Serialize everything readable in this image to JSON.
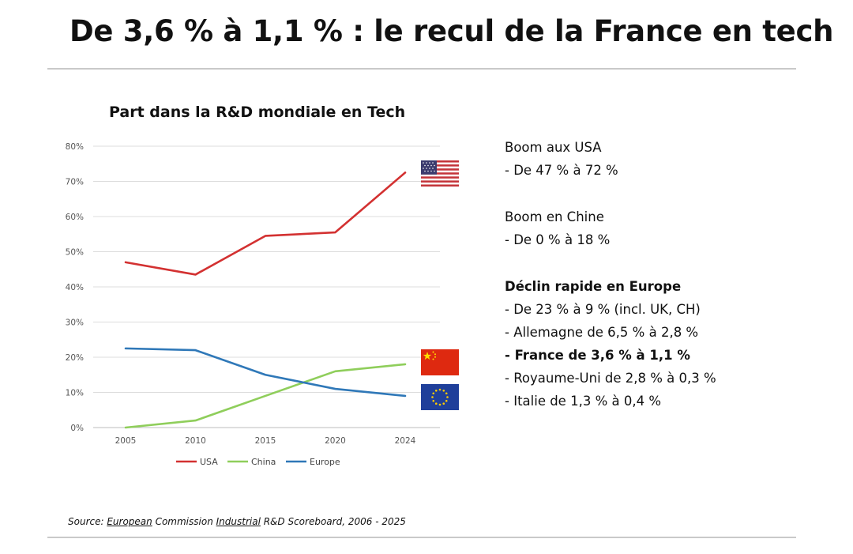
{
  "header": {
    "title": "De 3,6 % à 1,1 % : le recul de la France en tech"
  },
  "chart_data": {
    "type": "line",
    "title": "Part dans la R&D mondiale en Tech",
    "categories": [
      "2005",
      "2010",
      "2015",
      "2020",
      "2024"
    ],
    "series": [
      {
        "name": "USA",
        "color": "#d33131",
        "values": [
          47,
          43.5,
          54.5,
          55.5,
          72.5
        ]
      },
      {
        "name": "China",
        "color": "#8fce5b",
        "values": [
          0,
          2,
          9,
          16,
          18
        ]
      },
      {
        "name": "Europe",
        "color": "#2f78b8",
        "values": [
          22.5,
          22,
          15,
          11,
          9
        ]
      }
    ],
    "yticks": [
      "0%",
      "10%",
      "20%",
      "30%",
      "40%",
      "50%",
      "60%",
      "70%",
      "80%"
    ],
    "ylim": [
      0,
      80
    ],
    "grid": true,
    "legend_position": "bottom",
    "xlabel": "",
    "ylabel": "",
    "flags": [
      {
        "icon": "us-flag-icon",
        "series": "USA"
      },
      {
        "icon": "china-flag-icon",
        "series": "China"
      },
      {
        "icon": "eu-flag-icon",
        "series": "Europe"
      }
    ]
  },
  "facts": {
    "usa_heading": "Boom aux USA",
    "usa_item": "- De 47 % à 72 %",
    "china_heading": "Boom en Chine",
    "china_item": "- De 0 % à 18 %",
    "europe_heading": "Déclin rapide en Europe",
    "europe_items": [
      "- De 23 % à 9 % (incl. UK, CH)",
      "- Allemagne de 6,5 % à 2,8 %",
      "- France de 3,6 % à 1,1 %",
      "- Royaume-Uni de 2,8 % à 0,3 %",
      "- Italie de 1,3 % à 0,4 %"
    ]
  },
  "source": {
    "prefix": "Source: ",
    "word1": "European",
    "middle": " Commission ",
    "word2": "Industrial",
    "suffix": " R&D Scoreboard, 2006 - 2025"
  }
}
